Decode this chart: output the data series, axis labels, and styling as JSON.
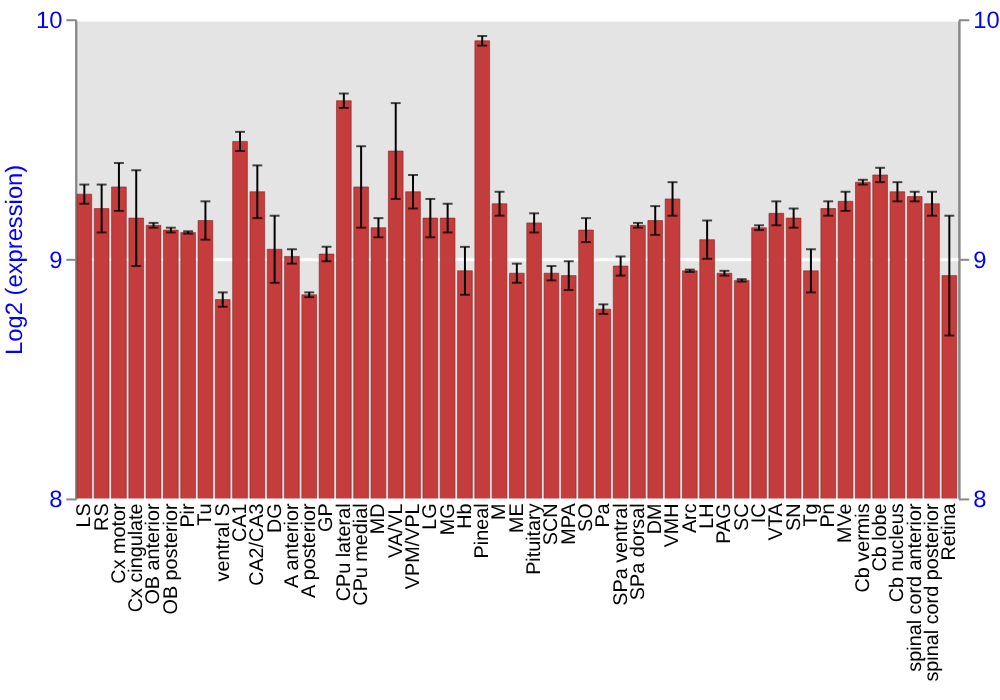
{
  "chart_data": {
    "type": "bar",
    "ylabel": "Log2 (expression)",
    "categories": [
      "LS",
      "RS",
      "Cx motor",
      "Cx cingulate",
      "OB anterior",
      "OB posterior",
      "Pir",
      "Tu",
      "ventral S",
      "CA1",
      "CA2/CA3",
      "DG",
      "A anterior",
      "A posterior",
      "GP",
      "CPu lateral",
      "CPu medial",
      "MD",
      "VA/VL",
      "VPM/VPL",
      "LG",
      "MG",
      "Hb",
      "Pineal",
      "M",
      "ME",
      "Pituitary",
      "SCN",
      "MPA",
      "SO",
      "Pa",
      "SPa ventral",
      "SPa dorsal",
      "DM",
      "VMH",
      "Arc",
      "LH",
      "PAG",
      "SC",
      "IC",
      "VTA",
      "SN",
      "Tg",
      "Pn",
      "MVe",
      "Cb vermis",
      "Cb lobe",
      "Cb nucleus",
      "spinal cord anterior",
      "spinal cord posterior",
      "Retina"
    ],
    "series": [
      {
        "color": "#c43c3c",
        "values": [
          9.27,
          9.21,
          9.3,
          9.17,
          9.14,
          9.12,
          9.11,
          9.16,
          8.83,
          9.49,
          9.28,
          9.04,
          9.01,
          8.85,
          9.02,
          9.66,
          9.3,
          9.13,
          9.45,
          9.28,
          9.17,
          9.17,
          8.95,
          9.91,
          9.23,
          8.94,
          9.15,
          8.94,
          8.93,
          9.12,
          8.79,
          8.97,
          9.14,
          9.16,
          9.25,
          8.95,
          9.08,
          8.94,
          8.91,
          9.13,
          9.19,
          9.17,
          8.95,
          9.21,
          9.24,
          9.32,
          9.35,
          9.28,
          9.26,
          9.23,
          8.93
        ],
        "errors": [
          0.04,
          0.1,
          0.1,
          0.2,
          0.01,
          0.01,
          0.005,
          0.08,
          0.03,
          0.04,
          0.11,
          0.14,
          0.03,
          0.01,
          0.03,
          0.03,
          0.17,
          0.04,
          0.2,
          0.07,
          0.08,
          0.06,
          0.1,
          0.02,
          0.05,
          0.04,
          0.04,
          0.03,
          0.06,
          0.05,
          0.02,
          0.04,
          0.01,
          0.06,
          0.07,
          0.005,
          0.08,
          0.01,
          0.005,
          0.01,
          0.05,
          0.04,
          0.09,
          0.03,
          0.04,
          0.01,
          0.03,
          0.04,
          0.02,
          0.05,
          0.25
        ]
      }
    ],
    "ylim": [
      8,
      10
    ],
    "yticks": [
      8,
      9,
      10
    ],
    "y2lim": [
      8,
      10
    ],
    "y2ticks": [
      8,
      9,
      10
    ],
    "grid": "y"
  }
}
